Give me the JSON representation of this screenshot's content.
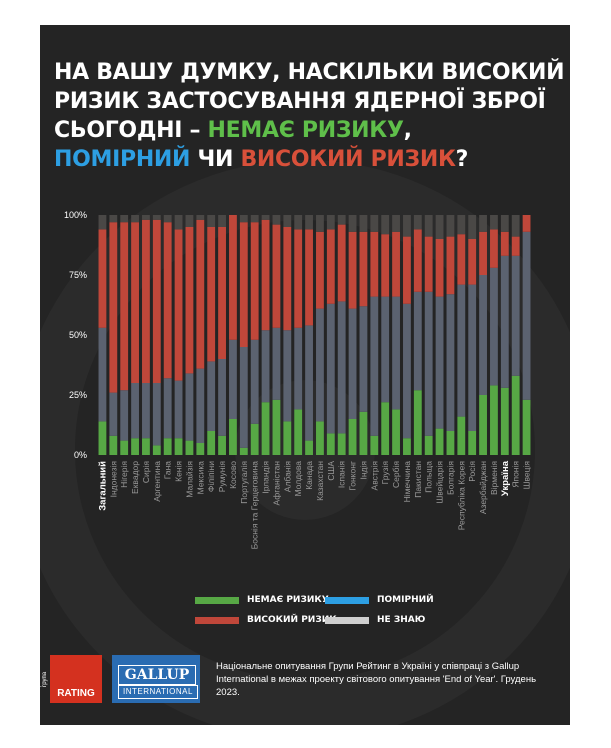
{
  "title": {
    "line1": "НА ВАШУ ДУМКУ, НАСКІЛЬКИ ВИСОКИЙ",
    "line2": "РИЗИК ЗАСТОСУВАННЯ ЯДЕРНОЇ ЗБРОЇ",
    "line3_prefix": "СЬОГОДНІ – ",
    "line3_green": "НЕМАЄ РИЗИКУ",
    "line3_suffix": ",",
    "line4_blue": "ПОМІРНИЙ",
    "line4_mid": " ЧИ ",
    "line4_red": "ВИСОКИЙ РИЗИК",
    "line4_suffix": "?"
  },
  "colors": {
    "no_risk": "#57a845",
    "moderate": "#5b6270",
    "high": "#c0473a",
    "dont_know": "#4a4846",
    "background": "#242424"
  },
  "chart_data": {
    "type": "bar",
    "stacked": true,
    "ylim": [
      0,
      100
    ],
    "yticks": [
      "0%",
      "25%",
      "50%",
      "75%",
      "100%"
    ],
    "categories": [
      "Загальний",
      "Індонезія",
      "Нігерія",
      "Еквадор",
      "Сирія",
      "Аргентина",
      "Гана",
      "Кенія",
      "Малайзія",
      "Мексика",
      "Філіпіни",
      "Румунія",
      "Косово",
      "Португалія",
      "Боснія та Герцеговина",
      "Ірландія",
      "Афганістан",
      "Албанія",
      "Молдова",
      "Канада",
      "Казахстан",
      "США",
      "Іспанія",
      "Гонконг",
      "Індія",
      "Австрія",
      "Грузія",
      "Сербія",
      "Німеччина",
      "Пакистан",
      "Польща",
      "Швейцарія",
      "Болгарія",
      "Республіка Корея",
      "Росія",
      "Азербайджан",
      "Вірменія",
      "Україна",
      "Японія",
      "Швеція"
    ],
    "bold_categories": [
      "Загальний",
      "Україна"
    ],
    "series": [
      {
        "name": "НЕМАЄ РИЗИКУ",
        "values": [
          14,
          8,
          6,
          7,
          7,
          4,
          7,
          7,
          6,
          5,
          10,
          8,
          15,
          3,
          13,
          22,
          23,
          14,
          19,
          6,
          14,
          9,
          9,
          15,
          18,
          8,
          22,
          19,
          7,
          27,
          8,
          11,
          10,
          16,
          10,
          25,
          29,
          28,
          33,
          23
        ]
      },
      {
        "name": "ПОМІРНИЙ",
        "values": [
          39,
          18,
          21,
          23,
          23,
          26,
          25,
          24,
          28,
          31,
          29,
          32,
          33,
          42,
          35,
          30,
          30,
          38,
          34,
          48,
          47,
          54,
          55,
          46,
          44,
          58,
          44,
          47,
          56,
          41,
          60,
          55,
          57,
          55,
          61,
          50,
          49,
          55,
          50,
          70
        ]
      },
      {
        "name": "ВИСОКИЙ РИЗИК",
        "values": [
          41,
          71,
          70,
          67,
          68,
          68,
          65,
          63,
          61,
          62,
          56,
          55,
          52,
          52,
          49,
          46,
          43,
          43,
          41,
          40,
          32,
          31,
          32,
          32,
          31,
          27,
          26,
          27,
          28,
          26,
          23,
          24,
          24,
          21,
          19,
          18,
          16,
          10,
          8,
          7
        ]
      },
      {
        "name": "НЕ ЗНАЮ",
        "values": [
          6,
          3,
          3,
          3,
          2,
          2,
          3,
          6,
          5,
          2,
          5,
          5,
          0,
          3,
          3,
          2,
          4,
          5,
          6,
          6,
          7,
          6,
          4,
          7,
          7,
          7,
          8,
          7,
          9,
          6,
          9,
          10,
          9,
          8,
          10,
          7,
          6,
          7,
          9,
          0
        ]
      }
    ]
  },
  "legend": {
    "no_risk": "НЕМАЄ РИЗИКУ",
    "moderate": "ПОМІРНИЙ",
    "high": "ВИСОКИЙ РИЗИК",
    "dont_know": "НЕ ЗНАЮ"
  },
  "footer": {
    "logo1_vertical": "соціологічна група",
    "logo1_text": "RATING",
    "logo2_line1": "GALLUP",
    "logo2_line2": "INTERNATIONAL",
    "note": "Національне опитування Групи Рейтинг в Україні у співпраці з Gallup International в межах проекту світового опитування 'End of Year'. Грудень 2023."
  }
}
